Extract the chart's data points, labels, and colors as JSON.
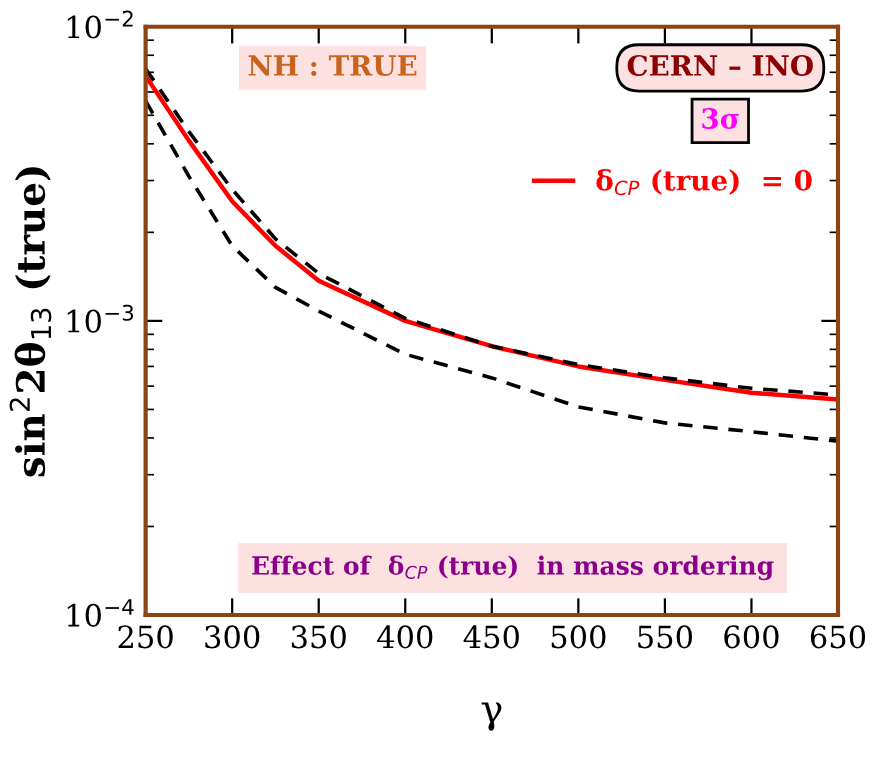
{
  "chart_data": {
    "type": "line",
    "xlabel": "γ",
    "ylabel": "sin$^{2}$2θ$_{13}$ (true)",
    "log": "y",
    "xlim": [
      250,
      650
    ],
    "xticks": [
      250,
      300,
      350,
      400,
      450,
      500,
      550,
      600,
      650
    ],
    "ylim": [
      0.0001,
      0.01
    ],
    "yticks": [
      {
        "value": 0.0001,
        "label": "10$^{−4}$"
      },
      {
        "value": 0.001,
        "label": "10$^{−3}$"
      },
      {
        "value": 0.01,
        "label": "10$^{−2}$"
      }
    ],
    "grid": false,
    "legend": "top right",
    "marker": "none",
    "annotations": [
      "NH : TRUE",
      "CERN – INO",
      "3σ",
      "Effect of  δ$_{CP}$ (true)  in mass ordering"
    ],
    "x": [
      250,
      275,
      300,
      325,
      350,
      400,
      450,
      500,
      550,
      600,
      650
    ],
    "series": [
      {
        "name": "δ$_{CP}$ (true)  = 0",
        "color": "#ff0000",
        "line_style": "solid",
        "values": [
          0.0068,
          0.0041,
          0.00255,
          0.0018,
          0.00137,
          0.001,
          0.00082,
          0.0007,
          0.00063,
          0.00057,
          0.00054
        ]
      },
      {
        "color": "#000000",
        "line_style": "dashed",
        "values": [
          0.0072,
          0.0044,
          0.0028,
          0.0019,
          0.00145,
          0.00102,
          0.00082,
          0.00071,
          0.00064,
          0.00059,
          0.00056
        ]
      },
      {
        "color": "#000000",
        "line_style": "dashed",
        "values": [
          0.0056,
          0.0031,
          0.0018,
          0.0013,
          0.00108,
          0.00077,
          0.00064,
          0.00051,
          0.00045,
          0.00042,
          0.00039
        ]
      }
    ]
  }
}
